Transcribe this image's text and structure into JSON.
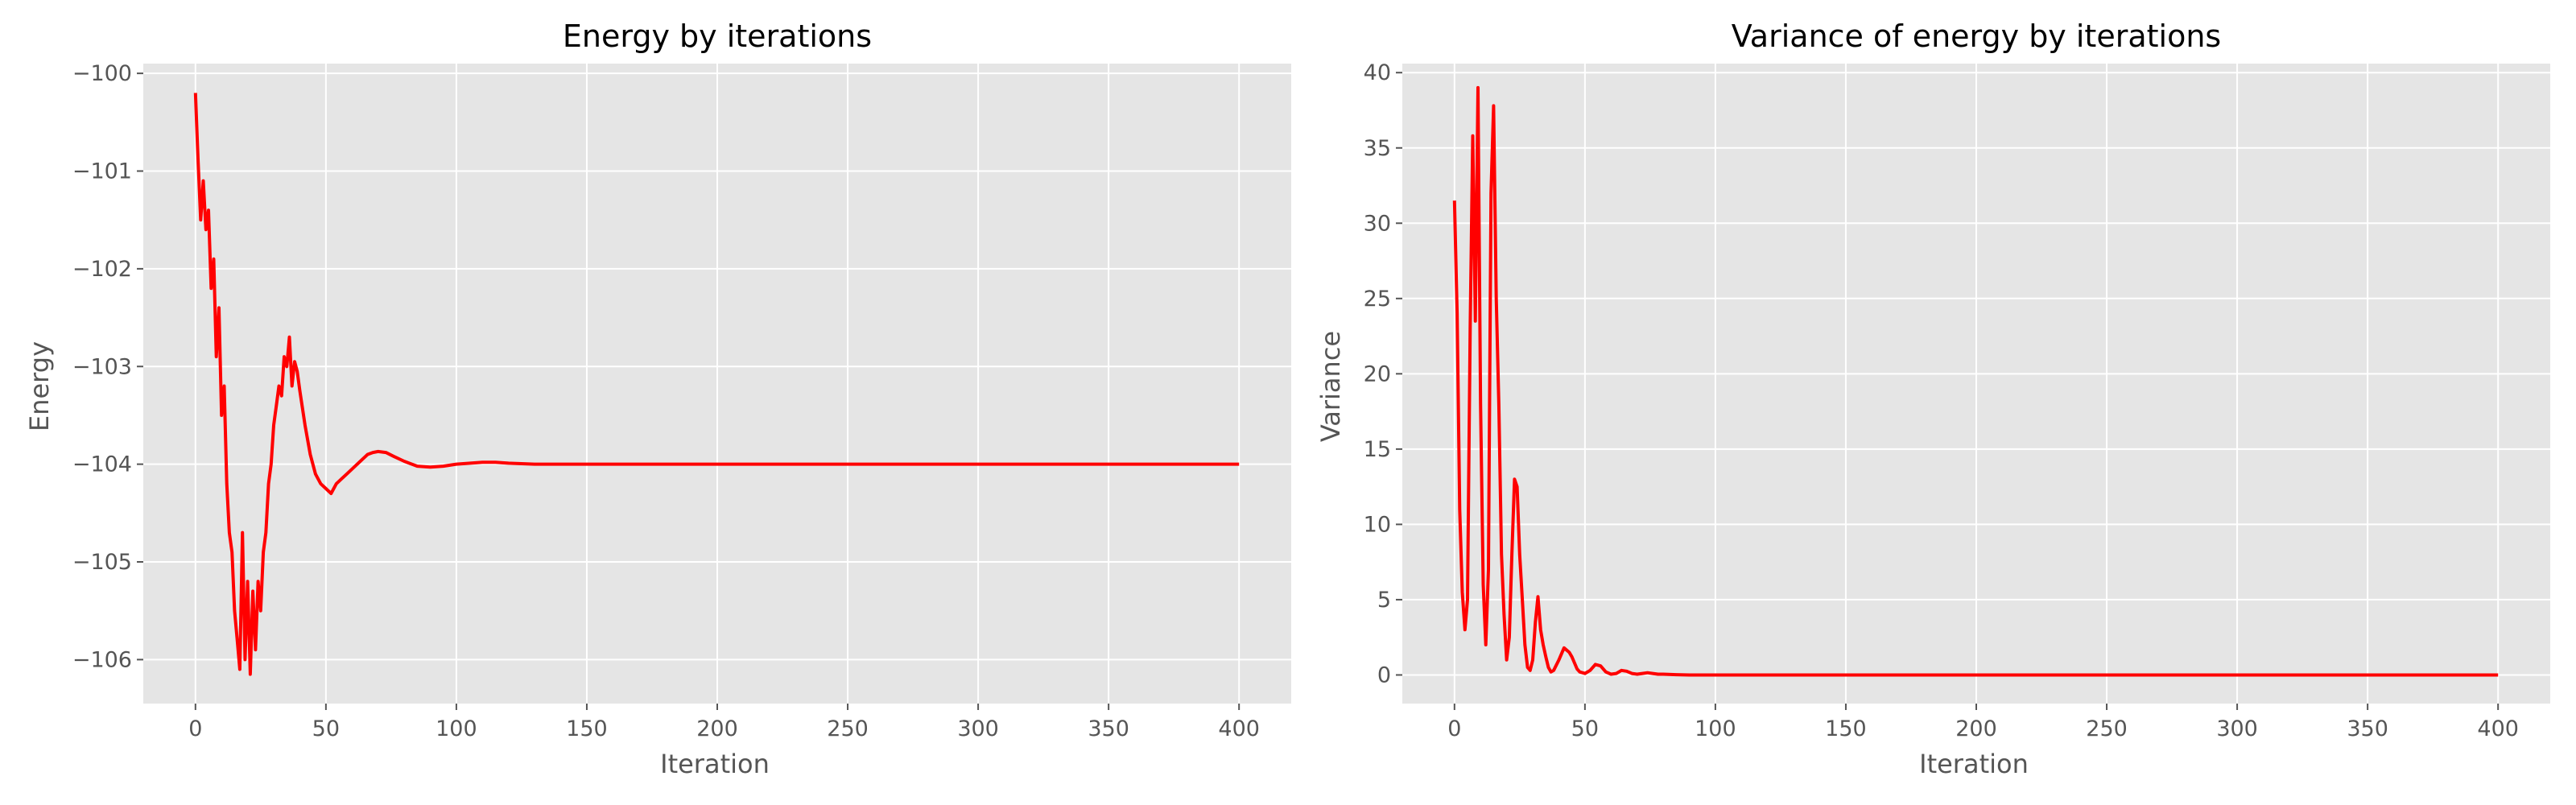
{
  "colors": {
    "line": "#ff0000",
    "background": "#e5e5e5",
    "grid": "#ffffff"
  },
  "chart_data": [
    {
      "type": "line",
      "title": "Energy by iterations",
      "xlabel": "Iteration",
      "ylabel": "Energy",
      "xlim": [
        -20,
        420
      ],
      "ylim": [
        -106.45,
        -99.9
      ],
      "xticks": [
        0,
        50,
        100,
        150,
        200,
        250,
        300,
        350,
        400
      ],
      "xtick_labels": [
        "0",
        "50",
        "100",
        "150",
        "200",
        "250",
        "300",
        "350",
        "400"
      ],
      "yticks": [
        -100,
        -101,
        -102,
        -103,
        -104,
        -105,
        -106
      ],
      "ytick_labels": [
        "−100",
        "−101",
        "−102",
        "−103",
        "−104",
        "−105",
        "−106"
      ],
      "grid": true,
      "series": [
        {
          "color": "#ff0000",
          "x": [
            0,
            1,
            2,
            3,
            4,
            5,
            6,
            7,
            8,
            9,
            10,
            11,
            12,
            13,
            14,
            15,
            16,
            17,
            18,
            19,
            20,
            21,
            22,
            23,
            24,
            25,
            26,
            27,
            28,
            29,
            30,
            31,
            32,
            33,
            34,
            35,
            36,
            37,
            38,
            39,
            40,
            42,
            44,
            46,
            48,
            50,
            52,
            54,
            56,
            58,
            60,
            62,
            64,
            66,
            68,
            70,
            73,
            76,
            80,
            85,
            90,
            95,
            100,
            110,
            115,
            120,
            130,
            140,
            150,
            160,
            180,
            200,
            250,
            300,
            350,
            400
          ],
          "y": [
            -100.2,
            -100.9,
            -101.5,
            -101.1,
            -101.6,
            -101.4,
            -102.2,
            -101.9,
            -102.9,
            -102.4,
            -103.5,
            -103.2,
            -104.2,
            -104.7,
            -104.9,
            -105.5,
            -105.8,
            -106.1,
            -104.7,
            -106.0,
            -105.2,
            -106.15,
            -105.3,
            -105.9,
            -105.2,
            -105.5,
            -104.9,
            -104.7,
            -104.2,
            -104.0,
            -103.6,
            -103.4,
            -103.2,
            -103.3,
            -102.9,
            -103.0,
            -102.7,
            -103.2,
            -102.95,
            -103.05,
            -103.25,
            -103.6,
            -103.9,
            -104.1,
            -104.2,
            -104.25,
            -104.3,
            -104.2,
            -104.15,
            -104.1,
            -104.05,
            -104.0,
            -103.95,
            -103.9,
            -103.88,
            -103.87,
            -103.88,
            -103.92,
            -103.97,
            -104.02,
            -104.03,
            -104.02,
            -104.0,
            -103.98,
            -103.98,
            -103.99,
            -104.0,
            -104.0,
            -104.0,
            -104.0,
            -104.0,
            -104.0,
            -104.0,
            -104.0,
            -104.0,
            -104.0
          ]
        }
      ]
    },
    {
      "type": "line",
      "title": "Variance of energy by iterations",
      "xlabel": "Iteration",
      "ylabel": "Variance",
      "xlim": [
        -20,
        420
      ],
      "ylim": [
        -1.9,
        40.6
      ],
      "xticks": [
        0,
        50,
        100,
        150,
        200,
        250,
        300,
        350,
        400
      ],
      "xtick_labels": [
        "0",
        "50",
        "100",
        "150",
        "200",
        "250",
        "300",
        "350",
        "400"
      ],
      "yticks": [
        0,
        5,
        10,
        15,
        20,
        25,
        30,
        35,
        40
      ],
      "ytick_labels": [
        "0",
        "5",
        "10",
        "15",
        "20",
        "25",
        "30",
        "35",
        "40"
      ],
      "grid": true,
      "series": [
        {
          "color": "#ff0000",
          "x": [
            0,
            1,
            2,
            3,
            4,
            5,
            6,
            7,
            8,
            9,
            10,
            11,
            12,
            13,
            14,
            15,
            16,
            17,
            18,
            19,
            20,
            21,
            22,
            23,
            24,
            25,
            26,
            27,
            28,
            29,
            30,
            31,
            32,
            33,
            34,
            35,
            36,
            37,
            38,
            40,
            42,
            44,
            45,
            46,
            47,
            48,
            50,
            52,
            54,
            56,
            58,
            60,
            62,
            64,
            66,
            68,
            70,
            72,
            74,
            76,
            78,
            80,
            85,
            90,
            100,
            150,
            200,
            250,
            300,
            350,
            400
          ],
          "y": [
            31.5,
            24.0,
            11.0,
            5.5,
            3.0,
            5.0,
            23.0,
            35.8,
            23.5,
            39.0,
            18.0,
            6.0,
            2.0,
            7.0,
            32.0,
            37.8,
            25.0,
            18.0,
            8.0,
            4.0,
            1.0,
            2.5,
            8.0,
            13.0,
            12.5,
            8.0,
            5.0,
            2.0,
            0.5,
            0.3,
            1.0,
            3.5,
            5.2,
            3.0,
            2.0,
            1.2,
            0.5,
            0.2,
            0.3,
            1.0,
            1.8,
            1.5,
            1.2,
            0.8,
            0.4,
            0.2,
            0.1,
            0.3,
            0.7,
            0.6,
            0.2,
            0.05,
            0.1,
            0.3,
            0.25,
            0.1,
            0.05,
            0.1,
            0.15,
            0.1,
            0.05,
            0.05,
            0.02,
            0.0,
            0.0,
            0.0,
            0.0,
            0.0,
            0.0,
            0.0,
            0.0
          ]
        }
      ]
    }
  ]
}
